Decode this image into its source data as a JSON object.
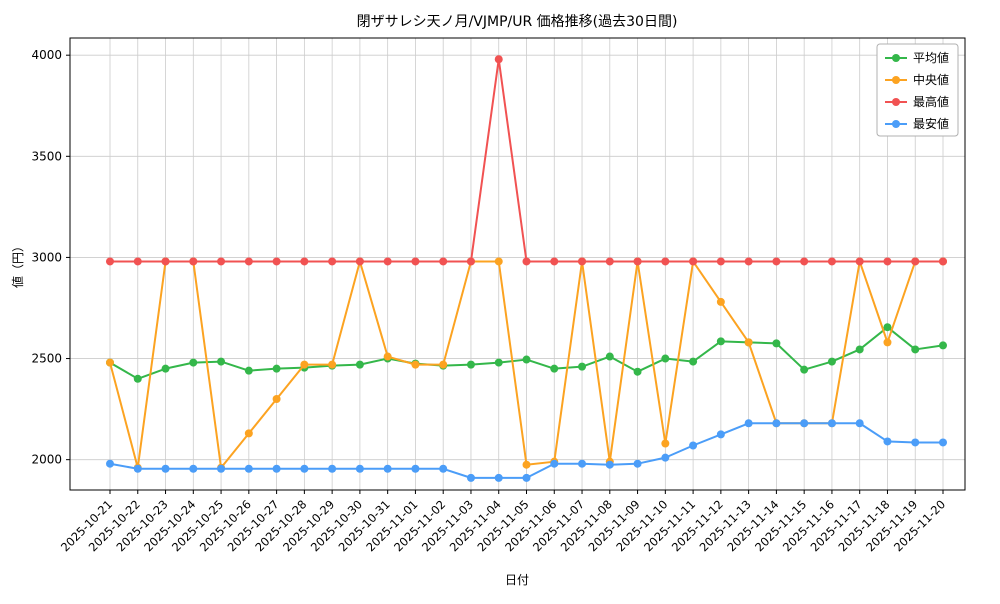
{
  "chart_data": {
    "type": "line",
    "title": "閉ザサレシ天ノ月/VJMP/UR 価格推移(過去30日間)",
    "xlabel": "日付",
    "ylabel": "値（円）",
    "ylim": [
      1850,
      4085
    ],
    "yticks": [
      2000,
      2500,
      3000,
      3500,
      4000
    ],
    "grid": true,
    "grid_color": "#cccccc",
    "axis_color": "#000000",
    "legend_position": "upper right",
    "categories": [
      "2025-10-21",
      "2025-10-22",
      "2025-10-23",
      "2025-10-24",
      "2025-10-25",
      "2025-10-26",
      "2025-10-27",
      "2025-10-28",
      "2025-10-29",
      "2025-10-30",
      "2025-10-31",
      "2025-11-01",
      "2025-11-02",
      "2025-11-03",
      "2025-11-04",
      "2025-11-05",
      "2025-11-06",
      "2025-11-07",
      "2025-11-08",
      "2025-11-09",
      "2025-11-10",
      "2025-11-11",
      "2025-11-12",
      "2025-11-13",
      "2025-11-14",
      "2025-11-15",
      "2025-11-16",
      "2025-11-17",
      "2025-11-18",
      "2025-11-19",
      "2025-11-20"
    ],
    "series": [
      {
        "key": "average",
        "name": "平均値",
        "color": "#34b74a",
        "values": [
          2480,
          2400,
          2450,
          2480,
          2485,
          2440,
          2450,
          2455,
          2465,
          2470,
          2500,
          2475,
          2465,
          2470,
          2480,
          2495,
          2450,
          2460,
          2510,
          2435,
          2500,
          2485,
          2585,
          2580,
          2575,
          2445,
          2485,
          2545,
          2655,
          2545,
          2565
        ]
      },
      {
        "key": "median",
        "name": "中央値",
        "color": "#fca321",
        "values": [
          2480,
          1960,
          2980,
          2980,
          1960,
          2130,
          2300,
          2470,
          2470,
          2980,
          2510,
          2470,
          2470,
          2980,
          2980,
          1975,
          1990,
          2980,
          1990,
          2980,
          2080,
          2980,
          2780,
          2580,
          2180,
          2180,
          2180,
          2980,
          2580,
          2980,
          2980
        ]
      },
      {
        "key": "max",
        "name": "最高値",
        "color": "#f15252",
        "values": [
          2980,
          2980,
          2980,
          2980,
          2980,
          2980,
          2980,
          2980,
          2980,
          2980,
          2980,
          2980,
          2980,
          2980,
          3980,
          2980,
          2980,
          2980,
          2980,
          2980,
          2980,
          2980,
          2980,
          2980,
          2980,
          2980,
          2980,
          2980,
          2980,
          2980,
          2980
        ]
      },
      {
        "key": "min",
        "name": "最安値",
        "color": "#4b9df8",
        "values": [
          1980,
          1955,
          1955,
          1955,
          1955,
          1955,
          1955,
          1955,
          1955,
          1955,
          1955,
          1955,
          1955,
          1910,
          1910,
          1910,
          1980,
          1980,
          1975,
          1980,
          2010,
          2070,
          2125,
          2180,
          2180,
          2180,
          2180,
          2180,
          2090,
          2085,
          2085
        ]
      }
    ]
  }
}
